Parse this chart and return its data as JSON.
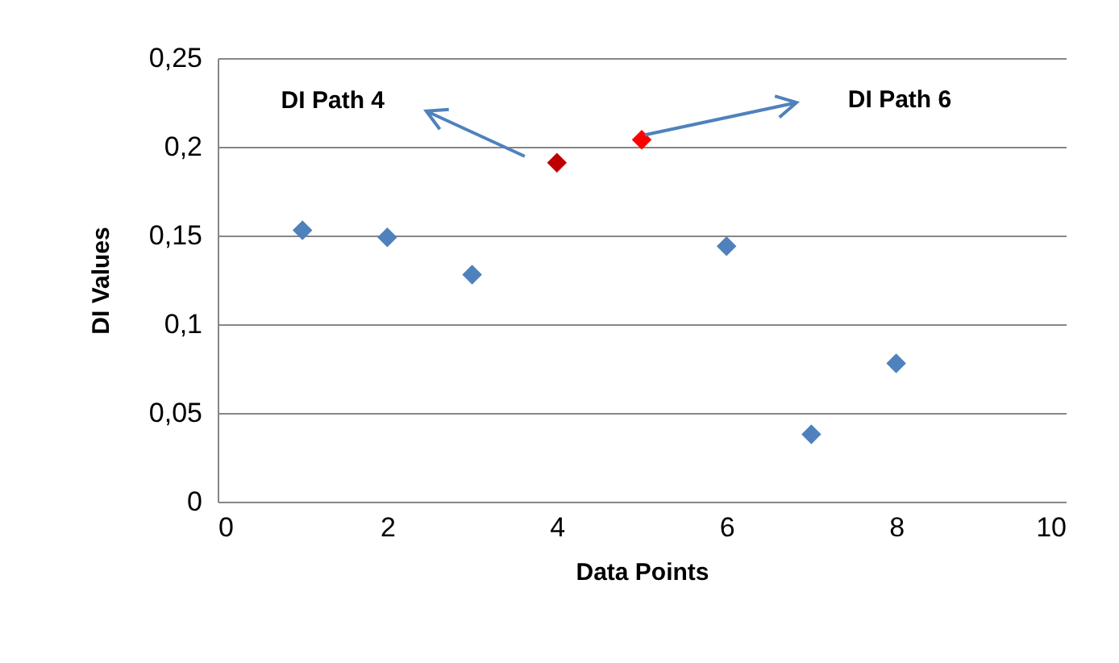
{
  "chart_data": {
    "type": "scatter",
    "xlabel": "Data Points",
    "ylabel": "DI Values",
    "x": [
      1,
      2,
      3,
      4,
      5,
      6,
      7,
      8
    ],
    "values": [
      0.153,
      0.149,
      0.128,
      0.191,
      0.204,
      0.144,
      0.038,
      0.078
    ],
    "colors": [
      "#4f81bd",
      "#4f81bd",
      "#4f81bd",
      "#c00000",
      "#ff0000",
      "#4f81bd",
      "#4f81bd",
      "#4f81bd"
    ],
    "marker": "diamond",
    "xlim": [
      0,
      10
    ],
    "xticks": [
      0,
      2,
      4,
      6,
      8,
      10
    ],
    "ylim": [
      0,
      0.25
    ],
    "yticks": [
      {
        "value": 0,
        "label": "0"
      },
      {
        "value": 0.05,
        "label": "0,05"
      },
      {
        "value": 0.1,
        "label": "0,1"
      },
      {
        "value": 0.15,
        "label": "0,15"
      },
      {
        "value": 0.2,
        "label": "0,2"
      },
      {
        "value": 0.25,
        "label": "0,25"
      }
    ],
    "grid": "y",
    "annotations": [
      "DI Path 4",
      "DI Path 6"
    ]
  }
}
